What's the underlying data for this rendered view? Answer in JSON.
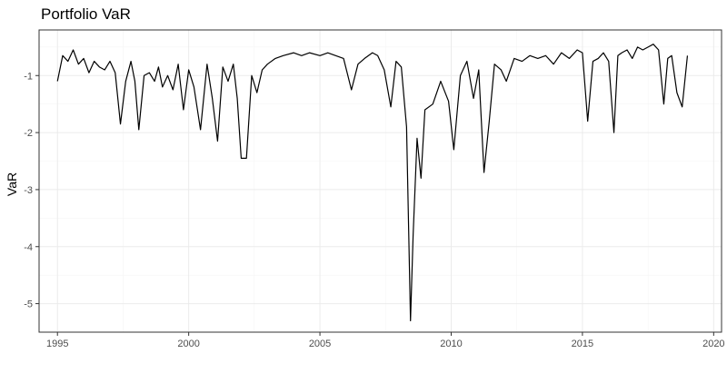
{
  "chart_data": {
    "type": "line",
    "title": "Portfolio VaR",
    "xlabel": "",
    "ylabel": "VaR",
    "xlim": [
      1994.3,
      2020.3
    ],
    "ylim": [
      -5.5,
      -0.2
    ],
    "x_ticks": [
      1995,
      2000,
      2005,
      2010,
      2015,
      2020
    ],
    "x_tick_labels": [
      "1995",
      "2000",
      "2005",
      "2010",
      "2015",
      "2020"
    ],
    "y_ticks": [
      -5,
      -4,
      -3,
      -2,
      -1
    ],
    "y_tick_labels": [
      "-5",
      "-4",
      "-3",
      "-2",
      "-1"
    ],
    "grid": true,
    "legend": "none",
    "series": [
      {
        "color": "#000000",
        "x": [
          1995.0,
          1995.2,
          1995.4,
          1995.6,
          1995.8,
          1996.0,
          1996.2,
          1996.4,
          1996.6,
          1996.8,
          1997.0,
          1997.2,
          1997.4,
          1997.6,
          1997.8,
          1997.95,
          1998.1,
          1998.3,
          1998.5,
          1998.7,
          1998.85,
          1999.0,
          1999.2,
          1999.4,
          1999.6,
          1999.8,
          2000.0,
          2000.2,
          2000.45,
          2000.7,
          2000.9,
          2001.1,
          2001.3,
          2001.5,
          2001.7,
          2001.85,
          2002.0,
          2002.2,
          2002.4,
          2002.6,
          2002.8,
          2003.0,
          2003.3,
          2003.6,
          2004.0,
          2004.3,
          2004.6,
          2005.0,
          2005.3,
          2005.6,
          2005.9,
          2006.2,
          2006.45,
          2006.7,
          2007.0,
          2007.2,
          2007.45,
          2007.7,
          2007.9,
          2008.1,
          2008.3,
          2008.45,
          2008.55,
          2008.7,
          2008.85,
          2009.0,
          2009.3,
          2009.6,
          2009.9,
          2010.1,
          2010.35,
          2010.6,
          2010.85,
          2011.05,
          2011.25,
          2011.45,
          2011.65,
          2011.9,
          2012.1,
          2012.4,
          2012.7,
          2013.0,
          2013.3,
          2013.6,
          2013.9,
          2014.2,
          2014.5,
          2014.8,
          2015.0,
          2015.2,
          2015.4,
          2015.6,
          2015.8,
          2016.0,
          2016.2,
          2016.35,
          2016.5,
          2016.7,
          2016.9,
          2017.1,
          2017.3,
          2017.5,
          2017.7,
          2017.9,
          2018.1,
          2018.25,
          2018.4,
          2018.6,
          2018.8,
          2019.0
        ],
        "y": [
          -1.1,
          -0.65,
          -0.75,
          -0.55,
          -0.8,
          -0.7,
          -0.95,
          -0.75,
          -0.85,
          -0.9,
          -0.75,
          -0.95,
          -1.85,
          -1.1,
          -0.75,
          -1.1,
          -1.95,
          -1.0,
          -0.95,
          -1.1,
          -0.85,
          -1.2,
          -1.0,
          -1.25,
          -0.8,
          -1.6,
          -0.9,
          -1.2,
          -1.95,
          -0.8,
          -1.4,
          -2.15,
          -0.85,
          -1.1,
          -0.8,
          -1.4,
          -2.45,
          -2.45,
          -1.0,
          -1.3,
          -0.9,
          -0.8,
          -0.7,
          -0.65,
          -0.6,
          -0.65,
          -0.6,
          -0.65,
          -0.6,
          -0.65,
          -0.7,
          -1.25,
          -0.8,
          -0.7,
          -0.6,
          -0.65,
          -0.9,
          -1.55,
          -0.75,
          -0.85,
          -1.9,
          -5.3,
          -3.8,
          -2.1,
          -2.8,
          -1.6,
          -1.5,
          -1.1,
          -1.45,
          -2.3,
          -1.0,
          -0.75,
          -1.4,
          -0.9,
          -2.7,
          -1.8,
          -0.8,
          -0.9,
          -1.1,
          -0.7,
          -0.75,
          -0.65,
          -0.7,
          -0.65,
          -0.8,
          -0.6,
          -0.7,
          -0.55,
          -0.6,
          -1.8,
          -0.75,
          -0.7,
          -0.6,
          -0.75,
          -2.0,
          -0.65,
          -0.6,
          -0.55,
          -0.7,
          -0.5,
          -0.55,
          -0.5,
          -0.45,
          -0.55,
          -1.5,
          -0.7,
          -0.65,
          -1.3,
          -1.55,
          -0.65
        ]
      }
    ]
  }
}
